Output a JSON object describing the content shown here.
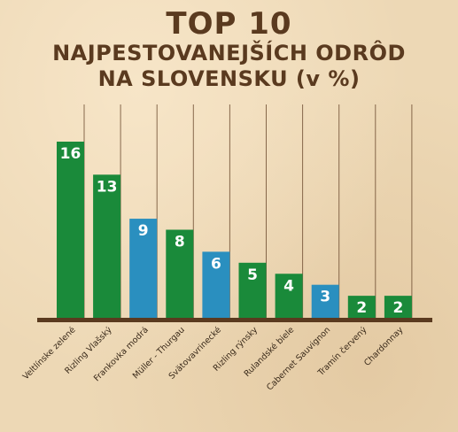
{
  "title": "TOP 10",
  "subtitle_line1": "NAJPESTOVANEJŠÍCH ODRÔD",
  "subtitle_line2": "NA SLOVENSKU (v %)",
  "colors": {
    "green": "#1a8a3a",
    "blue": "#2a8fbf",
    "axis": "#5a3a1f",
    "gridline": "#6b4a2e",
    "title": "#5a3a1f",
    "label_text": "#3a2a1a"
  },
  "chart_data": {
    "type": "bar",
    "categories": [
      "Veltlínske zelené",
      "Rizling Vlašský",
      "Frankovka modrá",
      "Müller - Thurgau",
      "Svätovavrinecké",
      "Rizling rýnsky",
      "Rulandské biele",
      "Cabernet Sauvignon",
      "Tramín červený",
      "Chardonnay"
    ],
    "values": [
      16,
      13,
      9,
      8,
      6,
      5,
      4,
      3,
      2,
      2
    ],
    "value_labels": [
      "16",
      "13",
      "9",
      "8",
      "6",
      "5",
      "4",
      "3",
      "2",
      "2"
    ],
    "bar_colors": [
      "green",
      "green",
      "blue",
      "green",
      "blue",
      "green",
      "green",
      "blue",
      "green",
      "green"
    ],
    "title": "TOP 10 NAJPESTOVANEJŠÍCH ODRÔD NA SLOVENSKU (v %)",
    "xlabel": "",
    "ylabel": "",
    "ylim": [
      0,
      16
    ],
    "grid": true,
    "legend": "none"
  }
}
